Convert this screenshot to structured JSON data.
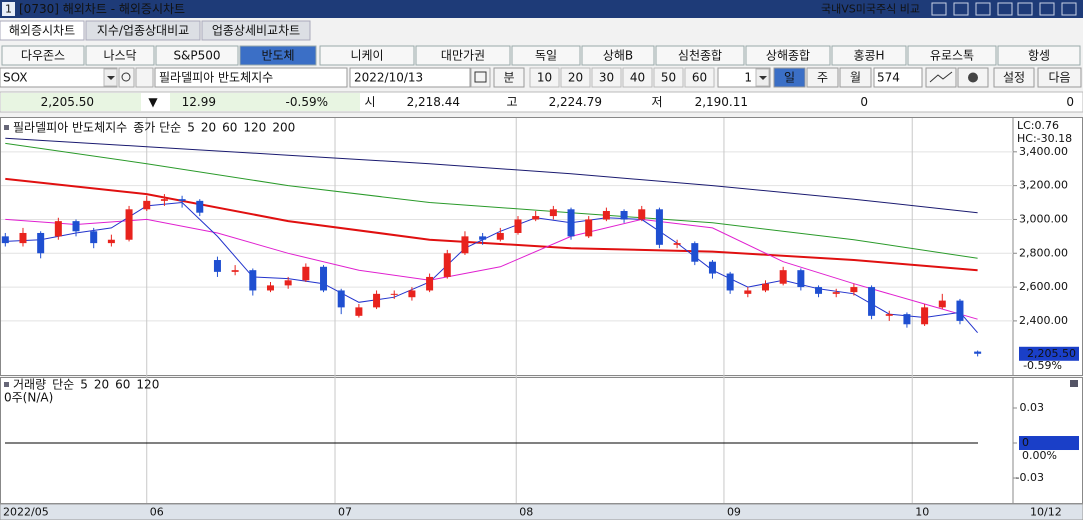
{
  "window": {
    "id": "1",
    "title": "[0730] 해외차트 - 해외증시차트",
    "compare_link": "국내VS미국주식 비교"
  },
  "tabs": [
    "해외증시차트",
    "지수/업종상대비교",
    "업종상세비교차트"
  ],
  "active_tab": 0,
  "index_buttons": [
    "다우존스",
    "나스닥",
    "S&P500",
    "반도체",
    "니케이",
    "대만가권",
    "독일",
    "상해B",
    "심천종합",
    "상해종합",
    "홍콩H",
    "유로스톡",
    "항셍"
  ],
  "active_button": 3,
  "controls": {
    "symbol": "SOX",
    "name": "필라델피아 반도체지수",
    "date": "2022/10/13",
    "minute": "분",
    "minute_options": [
      "10",
      "20",
      "30",
      "40",
      "50",
      "60"
    ],
    "count": "1",
    "periods": [
      "일",
      "주",
      "월"
    ],
    "active_period": 0,
    "bar_count": "574",
    "settings": "설정",
    "next": "다음"
  },
  "quote": {
    "price": "2,205.50",
    "arrow": "▼",
    "change": "12.99",
    "change_pct": "-0.59%",
    "open_label": "시",
    "open": "2,218.44",
    "high_label": "고",
    "high": "2,224.79",
    "low_label": "저",
    "low": "2,190.11",
    "volume": "0",
    "amount": "0"
  },
  "chart_data": [
    {
      "type": "candlestick",
      "title": "필라델피아 반도체지수",
      "ma_label": "종가 단순",
      "up_color": "#e8231d",
      "down_color": "#1f4fd1",
      "open": [
        2900,
        2860,
        2920,
        2900,
        2990,
        2930,
        2860,
        2880,
        3060,
        3110,
        3120,
        3110,
        2760,
        2690,
        2700,
        2580,
        2610,
        2640,
        2720,
        2580,
        2430,
        2480,
        2560,
        2540,
        2580,
        2660,
        2800,
        2900,
        2880,
        2920,
        3000,
        3020,
        3060,
        2900,
        3000,
        3050,
        3000,
        3060,
        2850,
        2860,
        2750,
        2680,
        2560,
        2580,
        2620,
        2700,
        2600,
        2560,
        2570,
        2600,
        2430,
        2440,
        2380,
        2480,
        2520,
        2218.44
      ],
      "high": [
        2920,
        2950,
        2930,
        3010,
        3000,
        2950,
        2910,
        3080,
        3140,
        3150,
        3140,
        3120,
        2780,
        2730,
        2710,
        2630,
        2660,
        2740,
        2730,
        2590,
        2500,
        2580,
        2580,
        2600,
        2680,
        2820,
        2930,
        2920,
        2950,
        3020,
        3050,
        3080,
        3070,
        3020,
        3070,
        3060,
        3080,
        3070,
        2880,
        2870,
        2760,
        2690,
        2600,
        2640,
        2720,
        2710,
        2610,
        2590,
        2620,
        2610,
        2460,
        2450,
        2500,
        2560,
        2530,
        2224.79
      ],
      "low": [
        2840,
        2840,
        2770,
        2880,
        2900,
        2830,
        2840,
        2870,
        3050,
        3080,
        3070,
        3020,
        2660,
        2670,
        2550,
        2570,
        2590,
        2630,
        2570,
        2440,
        2420,
        2470,
        2530,
        2520,
        2570,
        2650,
        2790,
        2850,
        2870,
        2910,
        2990,
        3000,
        2880,
        2890,
        2990,
        2980,
        2990,
        2830,
        2830,
        2730,
        2650,
        2560,
        2540,
        2570,
        2610,
        2580,
        2540,
        2540,
        2550,
        2410,
        2400,
        2360,
        2370,
        2470,
        2380,
        2190.11
      ],
      "close": [
        2860,
        2920,
        2800,
        2990,
        2930,
        2860,
        2880,
        3060,
        3110,
        3120,
        3110,
        3040,
        2690,
        2700,
        2580,
        2610,
        2640,
        2720,
        2580,
        2480,
        2480,
        2560,
        2560,
        2580,
        2660,
        2800,
        2900,
        2880,
        2920,
        3000,
        3020,
        3060,
        2900,
        3000,
        3050,
        3000,
        3060,
        2850,
        2860,
        2750,
        2680,
        2580,
        2580,
        2620,
        2700,
        2600,
        2560,
        2570,
        2600,
        2430,
        2440,
        2380,
        2480,
        2520,
        2400,
        2205.5
      ],
      "series": [
        {
          "name": "5",
          "color": "#2233cc",
          "width": 1,
          "x": [
            0,
            2,
            4,
            6,
            8,
            10,
            12,
            14,
            16,
            18,
            20,
            22,
            24,
            26,
            28,
            30,
            32,
            34,
            36,
            38,
            40,
            42,
            44,
            46,
            48,
            50,
            52,
            54,
            55
          ],
          "values": [
            2870,
            2880,
            2920,
            2950,
            3080,
            3100,
            2900,
            2660,
            2650,
            2620,
            2510,
            2540,
            2630,
            2830,
            2930,
            3010,
            2980,
            3010,
            3000,
            2860,
            2700,
            2600,
            2640,
            2590,
            2560,
            2440,
            2420,
            2450,
            2330
          ]
        },
        {
          "name": "20",
          "color": "#e020d0",
          "width": 1,
          "x": [
            0,
            4,
            8,
            12,
            16,
            20,
            24,
            28,
            32,
            36,
            40,
            44,
            48,
            52,
            55
          ],
          "values": [
            3000,
            2970,
            3000,
            2920,
            2800,
            2700,
            2640,
            2720,
            2900,
            3000,
            2950,
            2750,
            2620,
            2500,
            2410
          ]
        },
        {
          "name": "60",
          "color": "#e01010",
          "width": 2,
          "x": [
            0,
            8,
            16,
            24,
            32,
            40,
            48,
            55
          ],
          "values": [
            3240,
            3150,
            2990,
            2880,
            2830,
            2810,
            2760,
            2700
          ]
        },
        {
          "name": "120",
          "color": "#2a9a2a",
          "width": 1,
          "x": [
            0,
            8,
            16,
            24,
            32,
            40,
            48,
            55
          ],
          "values": [
            3450,
            3330,
            3200,
            3100,
            3040,
            2980,
            2880,
            2770
          ]
        },
        {
          "name": "200",
          "color": "#1a1a70",
          "width": 1,
          "x": [
            0,
            8,
            16,
            24,
            32,
            40,
            48,
            55
          ],
          "values": [
            3480,
            3430,
            3380,
            3330,
            3270,
            3200,
            3120,
            3040
          ]
        }
      ],
      "xlim": [
        -0.3,
        57
      ],
      "xticks": [
        {
          "value": -0.3,
          "label": "2022/05"
        },
        {
          "value": 8,
          "label": "06"
        },
        {
          "value": 18.65,
          "label": "07"
        },
        {
          "value": 28.9,
          "label": "08"
        },
        {
          "value": 40.65,
          "label": "09"
        },
        {
          "value": 51.3,
          "label": "10"
        }
      ],
      "x_end_label": "10/12",
      "ylim": [
        2080,
        3600
      ],
      "yticks": [
        {
          "value": 2400,
          "label": "2,400.00"
        },
        {
          "value": 2600,
          "label": "2,600.00"
        },
        {
          "value": 2800,
          "label": "2,800.00"
        },
        {
          "value": 3000,
          "label": "3,000.00"
        },
        {
          "value": 3200,
          "label": "3,200.00"
        },
        {
          "value": 3400,
          "label": "3,400.00"
        }
      ],
      "grid": true,
      "lc_label": "LC:0.76",
      "hc_label": "HC:-30.18",
      "last_value_label": "2,205.50",
      "last_change_label": "-0.59%"
    },
    {
      "type": "volume",
      "title": "거래량",
      "ma_label": "단순",
      "status": "0주(N/A)",
      "series": [
        {
          "name": "5",
          "color": "#2233cc"
        },
        {
          "name": "20",
          "color": "#e01010"
        },
        {
          "name": "60",
          "color": "#2a9a2a"
        },
        {
          "name": "120",
          "color": "#1a1a70"
        }
      ],
      "ylim": [
        -0.0514,
        0.0557
      ],
      "yticks": [
        0.03,
        0,
        -0.03
      ],
      "zero_pct_label": "0.00%"
    }
  ]
}
